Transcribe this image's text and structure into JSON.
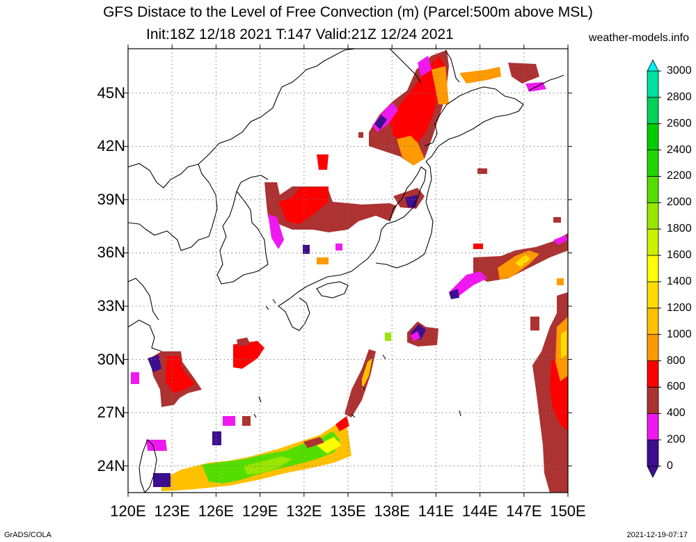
{
  "title": "GFS Distace to the Level of Free Convection (m) (Parcel:500m above MSL)",
  "subtitle": "Init:18Z 12/18 2021 T:147 Valid:21Z 12/24 2021",
  "credit": "weather-models.info",
  "footer_left": "GrADS/COLA",
  "footer_right": "2021-12-19-07:17",
  "map": {
    "lon_range": [
      120,
      150
    ],
    "lat_range": [
      22.5,
      47.5
    ],
    "lat_ticks": [
      {
        "value": 24,
        "label": "24N"
      },
      {
        "value": 27,
        "label": "27N"
      },
      {
        "value": 30,
        "label": "30N"
      },
      {
        "value": 33,
        "label": "33N"
      },
      {
        "value": 36,
        "label": "36N"
      },
      {
        "value": 39,
        "label": "39N"
      },
      {
        "value": 42,
        "label": "42N"
      },
      {
        "value": 45,
        "label": "45N"
      }
    ],
    "lon_ticks": [
      {
        "value": 120,
        "label": "120E"
      },
      {
        "value": 123,
        "label": "123E"
      },
      {
        "value": 126,
        "label": "126E"
      },
      {
        "value": 129,
        "label": "129E"
      },
      {
        "value": 132,
        "label": "132E"
      },
      {
        "value": 135,
        "label": "135E"
      },
      {
        "value": 138,
        "label": "138E"
      },
      {
        "value": 141,
        "label": "141E"
      },
      {
        "value": 144,
        "label": "144E"
      },
      {
        "value": 147,
        "label": "147E"
      },
      {
        "value": 150,
        "label": "150E"
      }
    ],
    "grid": true
  },
  "colorbar": {
    "levels": [
      {
        "value": 0,
        "label": "0",
        "color": "#3d0f8f"
      },
      {
        "value": 200,
        "label": "200",
        "color": "#f018f0"
      },
      {
        "value": 400,
        "label": "400",
        "color": "#ad3232"
      },
      {
        "value": 600,
        "label": "600",
        "color": "#ff0000"
      },
      {
        "value": 800,
        "label": "800",
        "color": "#ff9900"
      },
      {
        "value": 1000,
        "label": "1000",
        "color": "#ffc000"
      },
      {
        "value": 1200,
        "label": "1200",
        "color": "#ffdd00"
      },
      {
        "value": 1400,
        "label": "1400",
        "color": "#ffff00"
      },
      {
        "value": 1600,
        "label": "1600",
        "color": "#ccee00"
      },
      {
        "value": 1800,
        "label": "1800",
        "color": "#99e600"
      },
      {
        "value": 2000,
        "label": "2000",
        "color": "#55dd00"
      },
      {
        "value": 2200,
        "label": "2200",
        "color": "#22d400"
      },
      {
        "value": 2400,
        "label": "2400",
        "color": "#00cc00"
      },
      {
        "value": 2600,
        "label": "2600",
        "color": "#00d25a"
      },
      {
        "value": 2800,
        "label": "2800",
        "color": "#00e0a0"
      },
      {
        "value": 3000,
        "label": "3000",
        "color": "#00e8d8"
      }
    ],
    "top_color": "#00f0f0",
    "bottom_color": "#3d0f8f"
  },
  "chart_data": {
    "type": "heatmap",
    "variable": "Distance to the Level of Free Convection (m)",
    "units": "m",
    "regions": [
      {
        "lon": [
          120.3,
          123.8
        ],
        "lat": [
          27.0,
          30.6
        ],
        "value": 500
      },
      {
        "lon": [
          121.3,
          123.2
        ],
        "lat": [
          28.0,
          30.0
        ],
        "value": 650
      },
      {
        "lon": [
          125.3,
          127.6
        ],
        "lat": [
          28.8,
          31.1
        ],
        "value": 650
      },
      {
        "lon": [
          128.5,
          133.5
        ],
        "lat": [
          37.2,
          39.2
        ],
        "value": 500
      },
      {
        "lon": [
          129.5,
          132.5
        ],
        "lat": [
          37.6,
          39.6
        ],
        "value": 650
      },
      {
        "lon": [
          135.5,
          139.5
        ],
        "lat": [
          37.5,
          38.4
        ],
        "value": 450
      },
      {
        "lon": [
          136.5,
          141.3
        ],
        "lat": [
          41.0,
          44.8
        ],
        "value": 500
      },
      {
        "lon": [
          138.0,
          141.3
        ],
        "lat": [
          41.8,
          46.2
        ],
        "value": 650
      },
      {
        "lon": [
          139.5,
          141.5
        ],
        "lat": [
          43.0,
          47.4
        ],
        "value": 600
      },
      {
        "lon": [
          143.5,
          148.0
        ],
        "lat": [
          34.5,
          36.8
        ],
        "value": 400
      },
      {
        "lon": [
          145.0,
          148.5
        ],
        "lat": [
          35.2,
          36.3
        ],
        "value": 900
      },
      {
        "lon": [
          147.5,
          150.0
        ],
        "lat": [
          22.5,
          32.8
        ],
        "value": 500
      },
      {
        "lon": [
          148.5,
          150.0
        ],
        "lat": [
          25.0,
          30.5
        ],
        "value": 650
      },
      {
        "lon": [
          126.0,
          131.5
        ],
        "lat": [
          23.0,
          25.0
        ],
        "value": 2000
      },
      {
        "lon": [
          131.0,
          135.2
        ],
        "lat": [
          23.8,
          26.3
        ],
        "value": 1700
      },
      {
        "lon": [
          122.0,
          125.0
        ],
        "lat": [
          22.8,
          23.6
        ],
        "value": 800
      },
      {
        "lon": [
          138.0,
          140.5
        ],
        "lat": [
          31.0,
          32.0
        ],
        "value": 400
      }
    ]
  }
}
